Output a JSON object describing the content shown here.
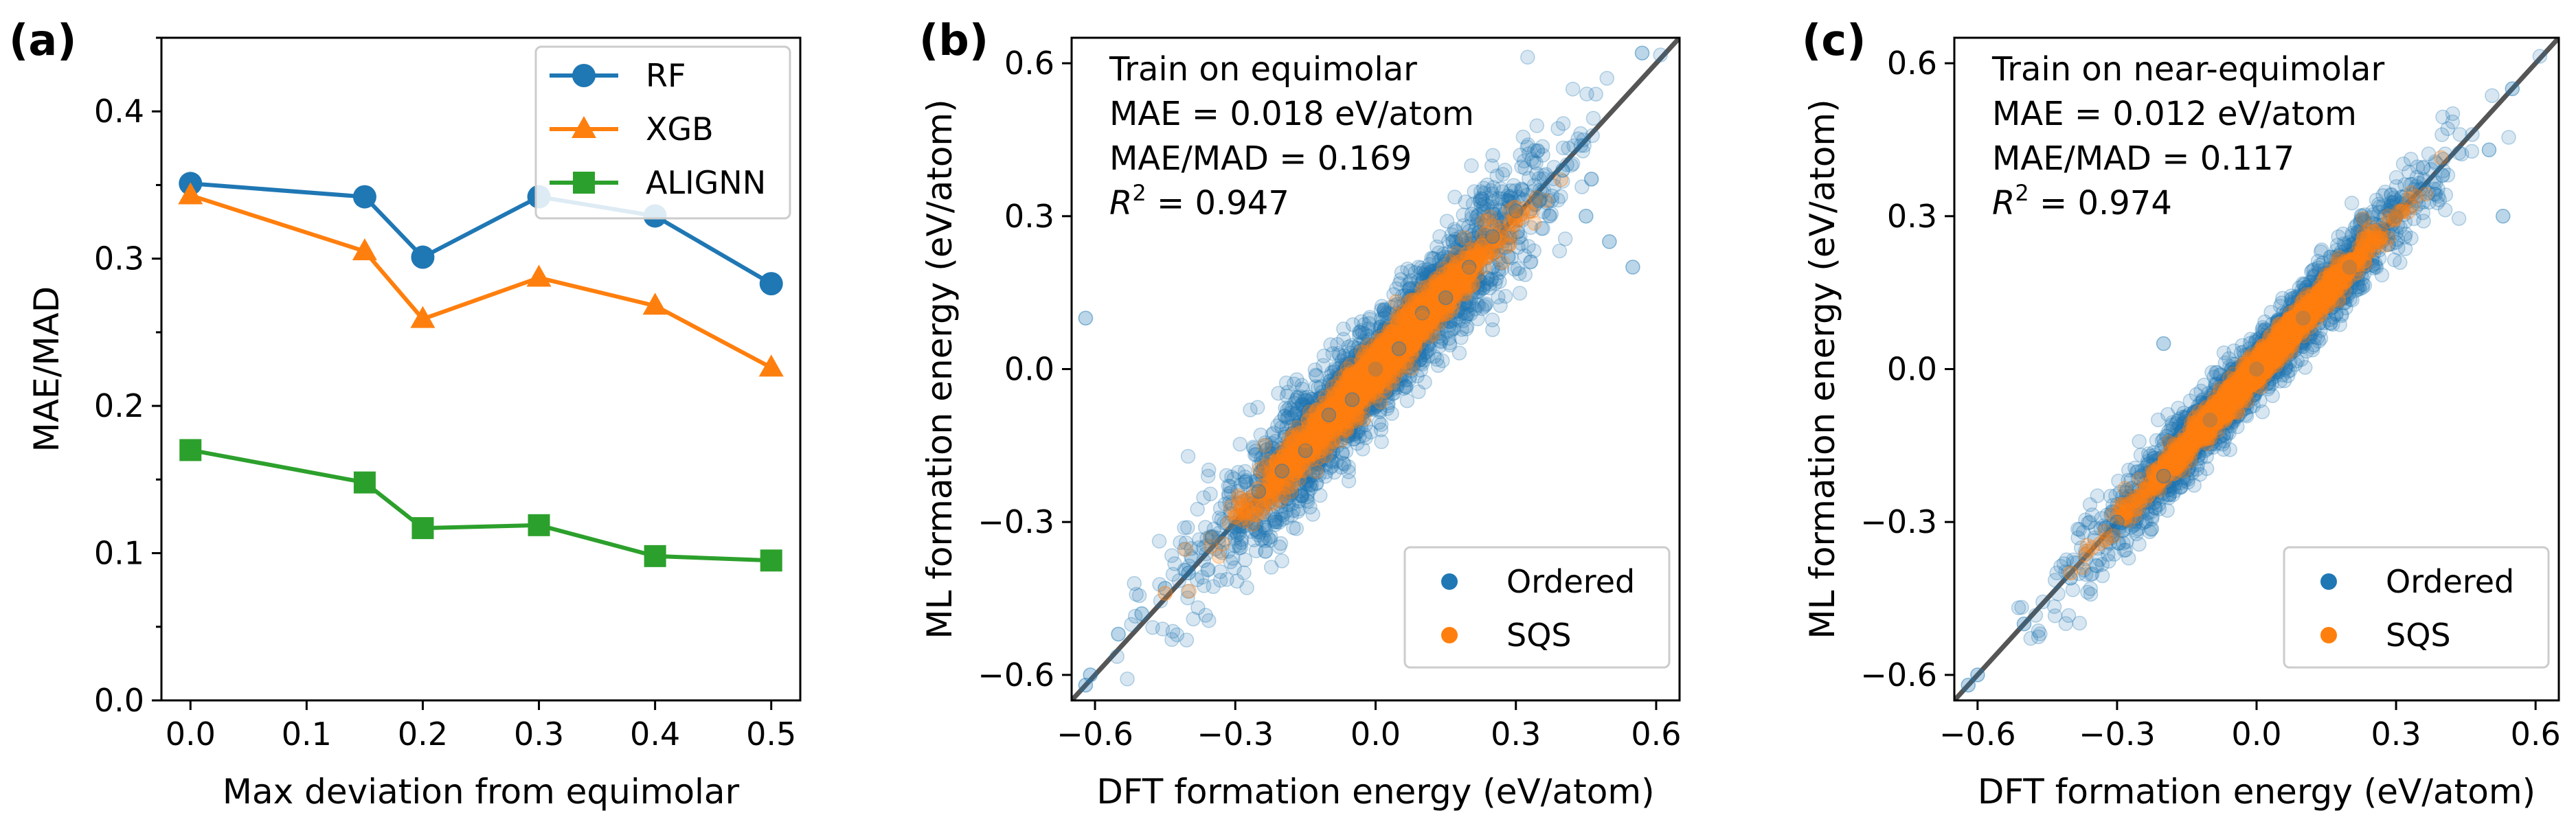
{
  "colors": {
    "RF": "#1f77b4",
    "XGB": "#ff7f0e",
    "ALIGNN": "#2ca02c",
    "Ordered": "#1f77b4",
    "SQS": "#ff7f0e",
    "identity_line": "#555555"
  },
  "chart_data": [
    {
      "panel_label": "(a)",
      "type": "line",
      "xlabel": "Max deviation from equimolar",
      "ylabel": "MAE/MAD",
      "xlim": [
        -0.025,
        0.525
      ],
      "ylim": [
        0.0,
        0.45
      ],
      "xticks": [
        "0.0",
        "0.1",
        "0.2",
        "0.3",
        "0.4",
        "0.5"
      ],
      "xtick_values": [
        0.0,
        0.1,
        0.2,
        0.3,
        0.4,
        0.5
      ],
      "yticks": [
        "0.0",
        "0.1",
        "0.2",
        "0.3",
        "0.4"
      ],
      "ytick_values": [
        0.0,
        0.1,
        0.2,
        0.3,
        0.4
      ],
      "legend_position": "top-right",
      "x": [
        0.0,
        0.15,
        0.2,
        0.3,
        0.4,
        0.5
      ],
      "series": [
        {
          "name": "RF",
          "marker": "circle",
          "values": [
            0.351,
            0.342,
            0.301,
            0.342,
            0.329,
            0.283
          ]
        },
        {
          "name": "XGB",
          "marker": "triangle",
          "values": [
            0.343,
            0.305,
            0.259,
            0.287,
            0.268,
            0.226
          ]
        },
        {
          "name": "ALIGNN",
          "marker": "square",
          "values": [
            0.17,
            0.148,
            0.117,
            0.119,
            0.098,
            0.095
          ]
        }
      ]
    },
    {
      "panel_label": "(b)",
      "type": "scatter",
      "xlabel": "DFT formation energy (eV/atom)",
      "ylabel": "ML formation energy (eV/atom)",
      "xlim": [
        -0.65,
        0.65
      ],
      "ylim": [
        -0.65,
        0.65
      ],
      "xticks": [
        "−0.6",
        "−0.3",
        "0.0",
        "0.3",
        "0.6"
      ],
      "xtick_values": [
        -0.6,
        -0.3,
        0.0,
        0.3,
        0.6
      ],
      "yticks": [
        "−0.6",
        "−0.3",
        "0.0",
        "0.3",
        "0.6"
      ],
      "ytick_values": [
        -0.6,
        -0.3,
        0.0,
        0.3,
        0.6
      ],
      "legend_position": "bottom-right",
      "annotation": {
        "line1": "Train on equimolar",
        "line2": "MAE = 0.018 eV/atom",
        "line3": "MAE/MAD = 0.169",
        "r2_prefix": "R",
        "r2_sup": "2",
        "r2_value": " = 0.947"
      },
      "series": [
        {
          "name": "Ordered",
          "x": [
            -0.62,
            -0.61,
            -0.55,
            -0.5,
            -0.45,
            -0.4,
            -0.35,
            -0.3,
            -0.25,
            -0.2,
            -0.15,
            -0.1,
            -0.05,
            0.0,
            0.05,
            0.1,
            0.15,
            0.2,
            0.25,
            0.3,
            0.35,
            0.4,
            0.45,
            0.5,
            0.55,
            -0.62,
            0.57
          ],
          "y": [
            -0.62,
            -0.6,
            -0.52,
            -0.48,
            -0.43,
            -0.4,
            -0.33,
            -0.31,
            -0.24,
            -0.2,
            -0.16,
            -0.09,
            -0.06,
            0.0,
            0.04,
            0.11,
            0.14,
            0.2,
            0.26,
            0.31,
            0.33,
            0.39,
            0.3,
            0.25,
            0.2,
            0.1,
            0.62
          ]
        },
        {
          "name": "SQS",
          "x": [
            -0.45,
            -0.3,
            -0.15,
            0.0,
            0.1,
            0.2,
            0.3
          ],
          "y": [
            -0.44,
            -0.29,
            -0.14,
            0.0,
            0.1,
            0.19,
            0.29
          ]
        }
      ]
    },
    {
      "panel_label": "(c)",
      "type": "scatter",
      "xlabel": "DFT formation energy (eV/atom)",
      "ylabel": "ML formation energy (eV/atom)",
      "xlim": [
        -0.65,
        0.65
      ],
      "ylim": [
        -0.65,
        0.65
      ],
      "xticks": [
        "−0.6",
        "−0.3",
        "0.0",
        "0.3",
        "0.6"
      ],
      "xtick_values": [
        -0.6,
        -0.3,
        0.0,
        0.3,
        0.6
      ],
      "yticks": [
        "−0.6",
        "−0.3",
        "0.0",
        "0.3",
        "0.6"
      ],
      "ytick_values": [
        -0.6,
        -0.3,
        0.0,
        0.3,
        0.6
      ],
      "legend_position": "bottom-right",
      "annotation": {
        "line1": "Train on near-equimolar",
        "line2": "MAE = 0.012 eV/atom",
        "line3": "MAE/MAD = 0.117",
        "r2_prefix": "R",
        "r2_sup": "2",
        "r2_value": " = 0.974"
      },
      "series": [
        {
          "name": "Ordered",
          "x": [
            -0.62,
            -0.6,
            -0.5,
            -0.4,
            -0.3,
            -0.2,
            -0.1,
            0.0,
            0.1,
            0.2,
            0.3,
            0.4,
            0.5,
            -0.2,
            0.55,
            0.53
          ],
          "y": [
            -0.62,
            -0.6,
            -0.5,
            -0.41,
            -0.3,
            -0.21,
            -0.1,
            0.0,
            0.1,
            0.2,
            0.3,
            0.38,
            0.43,
            0.05,
            0.55,
            0.3
          ]
        },
        {
          "name": "SQS",
          "x": [
            -0.4,
            -0.25,
            -0.1,
            0.0,
            0.1,
            0.2,
            0.3
          ],
          "y": [
            -0.4,
            -0.25,
            -0.1,
            0.0,
            0.1,
            0.2,
            0.3
          ]
        }
      ]
    }
  ]
}
